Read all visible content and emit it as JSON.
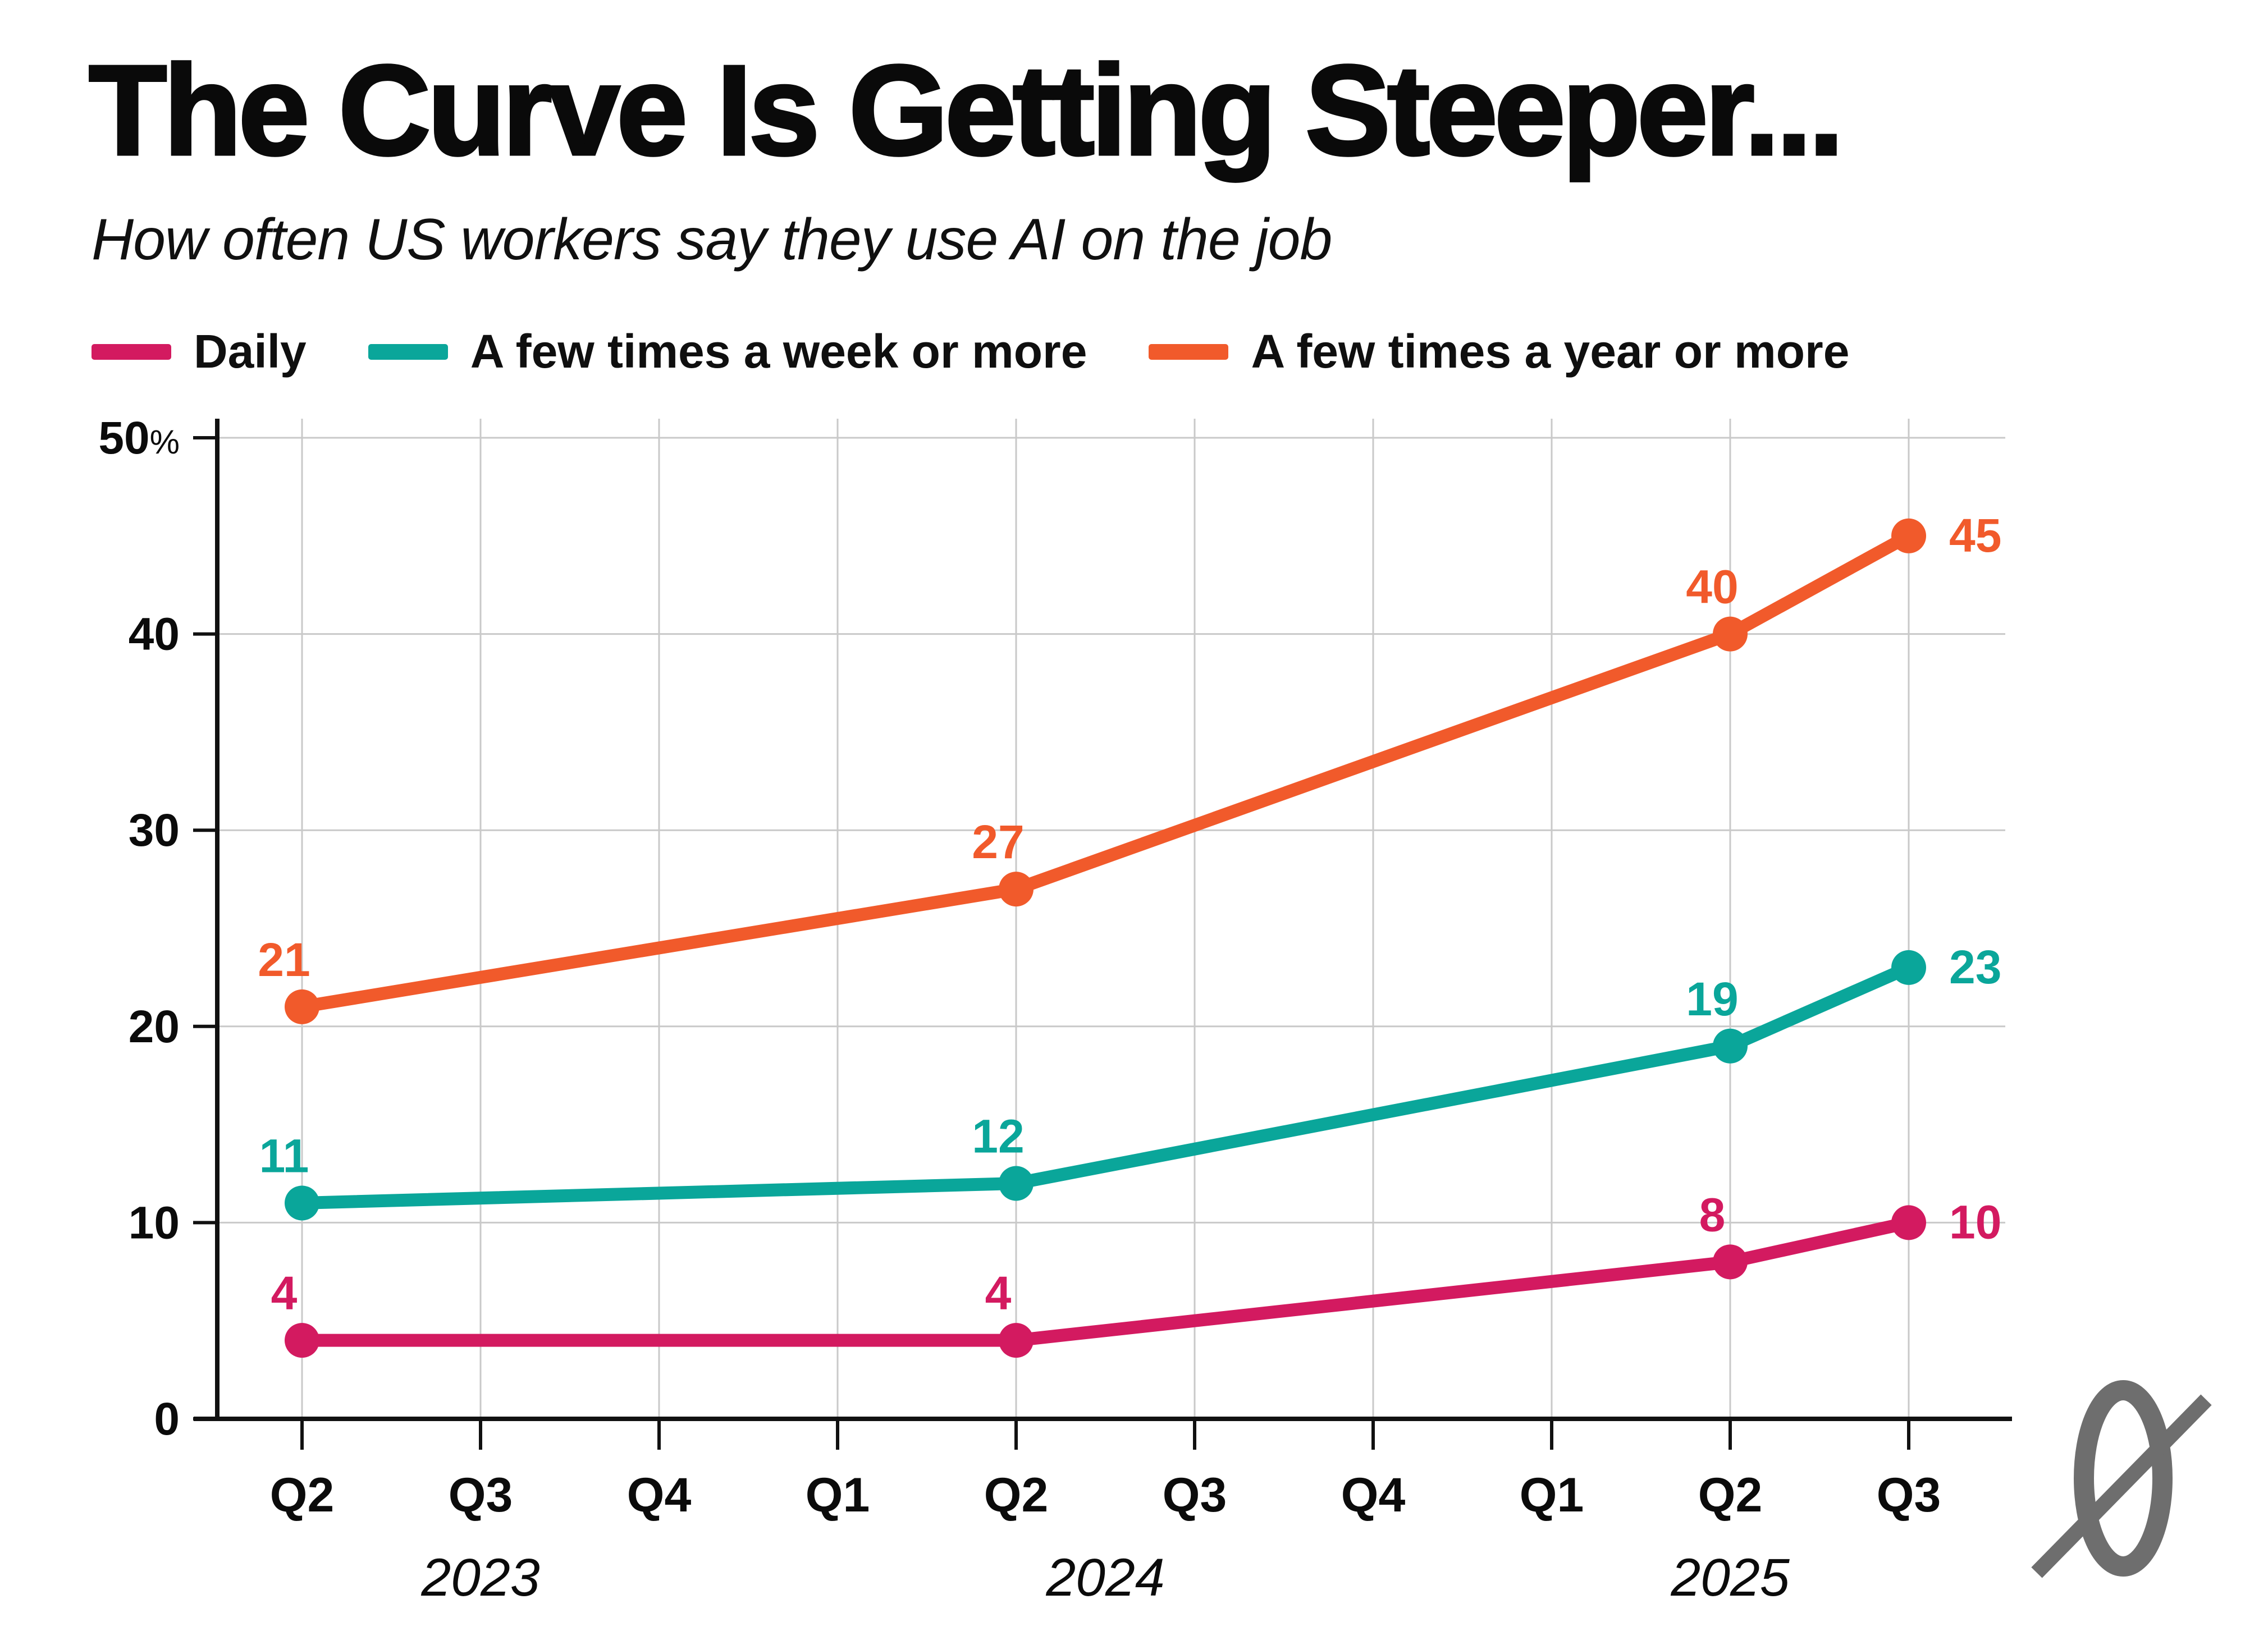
{
  "title": "The Curve Is Getting Steeper...",
  "subtitle": "How often US workers say they use AI on the job",
  "legend": [
    {
      "label": "Daily",
      "color": "#D31A60"
    },
    {
      "label": "A few times a week or more",
      "color": "#0AA69A"
    },
    {
      "label": "A few times a year or more",
      "color": "#F15A2B"
    }
  ],
  "chart_data": {
    "type": "line",
    "title": "The Curve Is Getting Steeper...",
    "subtitle": "How often US workers say they use AI on the job",
    "x_tick_labels": [
      "Q2",
      "Q3",
      "Q4",
      "Q1",
      "Q2",
      "Q3",
      "Q4",
      "Q1",
      "Q2",
      "Q3"
    ],
    "year_groups": [
      {
        "label": "2023",
        "start_index": 0,
        "end_index": 2
      },
      {
        "label": "2024",
        "start_index": 3,
        "end_index": 6
      },
      {
        "label": "2025",
        "start_index": 7,
        "end_index": 9
      }
    ],
    "y_axis": {
      "min": 0,
      "max": 50,
      "tick_step": 10,
      "top_tick_suffix": "%"
    },
    "grid": true,
    "legend_position": "top",
    "series": [
      {
        "name": "Daily",
        "color": "#D31A60",
        "points": [
          {
            "x_index": 0,
            "quarter": "Q2 2023",
            "value": 4
          },
          {
            "x_index": 4,
            "quarter": "Q2 2024",
            "value": 4
          },
          {
            "x_index": 8,
            "quarter": "Q2 2025",
            "value": 8
          },
          {
            "x_index": 9,
            "quarter": "Q3 2025",
            "value": 10
          }
        ]
      },
      {
        "name": "A few times a week or more",
        "color": "#0AA69A",
        "points": [
          {
            "x_index": 0,
            "quarter": "Q2 2023",
            "value": 11
          },
          {
            "x_index": 4,
            "quarter": "Q2 2024",
            "value": 12
          },
          {
            "x_index": 8,
            "quarter": "Q2 2025",
            "value": 19
          },
          {
            "x_index": 9,
            "quarter": "Q3 2025",
            "value": 23
          }
        ]
      },
      {
        "name": "A few times a year or more",
        "color": "#F15A2B",
        "points": [
          {
            "x_index": 0,
            "quarter": "Q2 2023",
            "value": 21
          },
          {
            "x_index": 4,
            "quarter": "Q2 2024",
            "value": 27
          },
          {
            "x_index": 8,
            "quarter": "Q2 2025",
            "value": 40
          },
          {
            "x_index": 9,
            "quarter": "Q3 2025",
            "value": 45
          }
        ]
      }
    ]
  },
  "logo": {
    "name": "slashed-zero",
    "color": "#6E6E6E"
  },
  "style": {
    "gridline_color": "#c9c9c9",
    "axis_color": "#111111",
    "text_color": "#0b0b0b"
  }
}
